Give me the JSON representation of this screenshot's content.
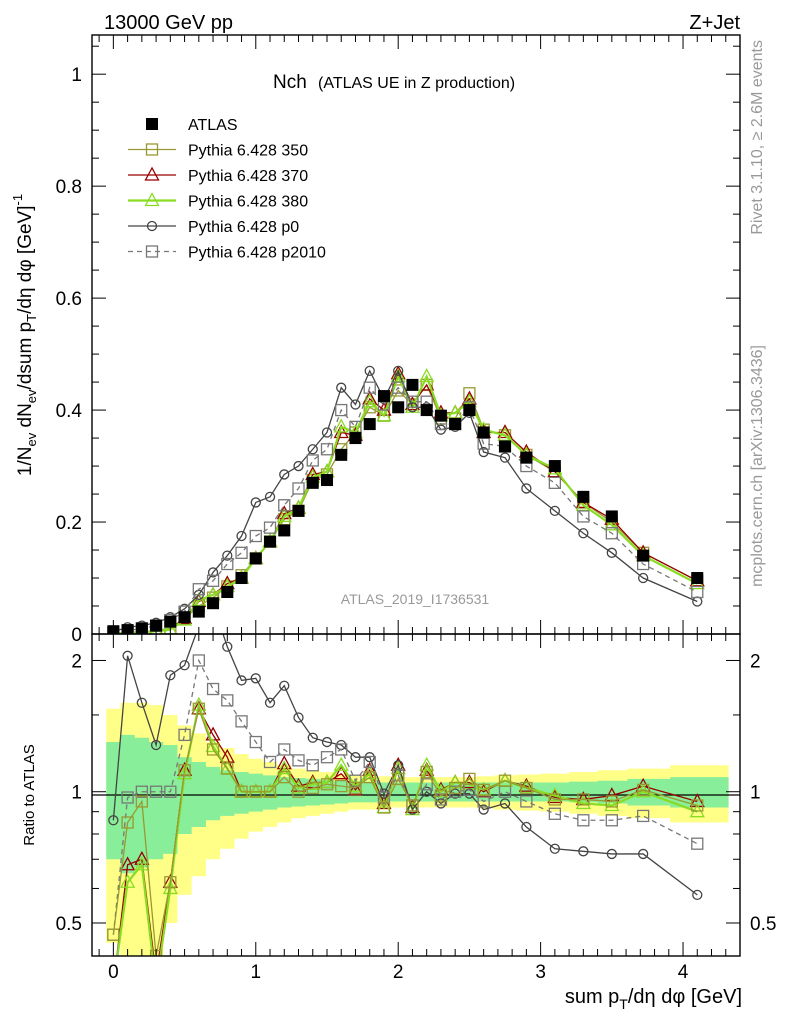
{
  "header": {
    "left": "13000 GeV pp",
    "right": "Z+Jet"
  },
  "plot_title": "Nch",
  "plot_subtitle": "(ATLAS UE in Z production)",
  "analysis_label": "ATLAS_2019_I1736531",
  "side_labels": {
    "rivet": "Rivet 3.1.10, ≥ 2.6M events",
    "mcplots": "mcplots.cern.ch [arXiv:1306.3436]"
  },
  "chart_data": [
    {
      "type": "line",
      "panel": "main",
      "ylabel": "1/N_ev dN_ev/dsum p_T/dη dφ [GeV]^-1",
      "xlim": [
        -0.15,
        4.4
      ],
      "ylim": [
        0,
        1.07
      ],
      "yticks": [
        "0",
        "0.2",
        "0.4",
        "0.6",
        "0.8",
        "1"
      ],
      "legend_position": "top-left",
      "x": [
        0.0,
        0.1,
        0.2,
        0.3,
        0.4,
        0.5,
        0.6,
        0.7,
        0.8,
        0.9,
        1.0,
        1.1,
        1.2,
        1.3,
        1.4,
        1.5,
        1.6,
        1.7,
        1.8,
        1.9,
        2.0,
        2.1,
        2.2,
        2.3,
        2.4,
        2.5,
        2.6,
        2.75,
        2.9,
        3.1,
        3.3,
        3.5,
        3.72,
        4.1
      ],
      "series": [
        {
          "name": "ATLAS",
          "color": "#000000",
          "marker": "filled-square",
          "dash": "none",
          "values": [
            0.005,
            0.007,
            0.01,
            0.015,
            0.022,
            0.03,
            0.04,
            0.055,
            0.075,
            0.1,
            0.135,
            0.165,
            0.185,
            0.22,
            0.27,
            0.275,
            0.32,
            0.35,
            0.375,
            0.425,
            0.405,
            0.445,
            0.4,
            0.39,
            0.375,
            0.4,
            0.36,
            0.335,
            0.315,
            0.3,
            0.245,
            0.21,
            0.14,
            0.1
          ]
        },
        {
          "name": "Pythia 6.428 350",
          "color": "#999933",
          "marker": "open-square",
          "dash": "none",
          "values": [
            0.002,
            0.003,
            0.004,
            0.006,
            0.01,
            0.028,
            0.05,
            0.065,
            0.085,
            0.105,
            0.135,
            0.165,
            0.205,
            0.22,
            0.275,
            0.285,
            0.33,
            0.36,
            0.405,
            0.39,
            0.435,
            0.41,
            0.445,
            0.385,
            0.385,
            0.43,
            0.365,
            0.355,
            0.32,
            0.29,
            0.235,
            0.2,
            0.145,
            0.095
          ]
        },
        {
          "name": "Pythia 6.428 370",
          "color": "#990000",
          "marker": "open-triangle",
          "dash": "none",
          "values": [
            0.001,
            0.002,
            0.003,
            0.005,
            0.008,
            0.028,
            0.058,
            0.07,
            0.09,
            0.1,
            0.135,
            0.165,
            0.215,
            0.225,
            0.285,
            0.29,
            0.36,
            0.355,
            0.42,
            0.4,
            0.465,
            0.41,
            0.445,
            0.395,
            0.395,
            0.42,
            0.36,
            0.36,
            0.325,
            0.29,
            0.235,
            0.205,
            0.145,
            0.095
          ]
        },
        {
          "name": "Pythia 6.428 380",
          "color": "#88dd22",
          "marker": "open-triangle",
          "dash": "none",
          "values": [
            0.001,
            0.002,
            0.003,
            0.005,
            0.008,
            0.025,
            0.06,
            0.07,
            0.085,
            0.1,
            0.135,
            0.165,
            0.21,
            0.225,
            0.28,
            0.29,
            0.37,
            0.36,
            0.415,
            0.39,
            0.46,
            0.405,
            0.46,
            0.39,
            0.395,
            0.415,
            0.365,
            0.355,
            0.32,
            0.295,
            0.23,
            0.195,
            0.14,
            0.09
          ]
        },
        {
          "name": "Pythia 6.428 p0",
          "color": "#444444",
          "marker": "open-circle",
          "dash": "none",
          "values": [
            0.004,
            0.012,
            0.015,
            0.02,
            0.03,
            0.045,
            0.07,
            0.11,
            0.14,
            0.175,
            0.235,
            0.245,
            0.285,
            0.3,
            0.33,
            0.36,
            0.44,
            0.41,
            0.47,
            0.42,
            0.47,
            0.405,
            0.405,
            0.365,
            0.37,
            0.395,
            0.325,
            0.315,
            0.26,
            0.22,
            0.18,
            0.145,
            0.1,
            0.058
          ]
        },
        {
          "name": "Pythia 6.428 p2010",
          "color": "#777777",
          "marker": "open-square",
          "dash": "dashed",
          "values": [
            0.002,
            0.006,
            0.01,
            0.015,
            0.025,
            0.04,
            0.08,
            0.095,
            0.125,
            0.145,
            0.175,
            0.19,
            0.23,
            0.26,
            0.31,
            0.33,
            0.4,
            0.37,
            0.44,
            0.41,
            0.44,
            0.415,
            0.415,
            0.375,
            0.375,
            0.405,
            0.34,
            0.335,
            0.3,
            0.27,
            0.21,
            0.18,
            0.125,
            0.075
          ]
        }
      ]
    },
    {
      "type": "line",
      "panel": "ratio",
      "ylabel": "Ratio to ATLAS",
      "xlabel": "sum p_T/dη dφ [GeV]",
      "xlim": [
        -0.15,
        4.4
      ],
      "ylim": [
        0.42,
        2.3
      ],
      "log_y": true,
      "yticks": [
        "0.5",
        "1",
        "2"
      ],
      "xticks": [
        "0",
        "1",
        "2",
        "3",
        "4"
      ],
      "x": [
        0.0,
        0.1,
        0.2,
        0.3,
        0.4,
        0.5,
        0.6,
        0.7,
        0.8,
        0.9,
        1.0,
        1.1,
        1.2,
        1.3,
        1.4,
        1.5,
        1.6,
        1.7,
        1.8,
        1.9,
        2.0,
        2.1,
        2.2,
        2.3,
        2.4,
        2.5,
        2.6,
        2.75,
        2.9,
        3.1,
        3.3,
        3.5,
        3.72,
        4.1
      ],
      "bands": {
        "inner_color": "#88ee99",
        "outer_color": "#ffff88",
        "inner_halfwidth": [
          0.3,
          0.35,
          0.33,
          0.3,
          0.28,
          0.2,
          0.17,
          0.14,
          0.12,
          0.11,
          0.1,
          0.09,
          0.08,
          0.075,
          0.07,
          0.065,
          0.06,
          0.055,
          0.055,
          0.05,
          0.05,
          0.05,
          0.05,
          0.05,
          0.05,
          0.05,
          0.05,
          0.05,
          0.05,
          0.05,
          0.055,
          0.06,
          0.07,
          0.08
        ],
        "outer_halfwidth": [
          0.55,
          0.6,
          0.6,
          0.58,
          0.5,
          0.42,
          0.36,
          0.3,
          0.26,
          0.22,
          0.19,
          0.17,
          0.15,
          0.13,
          0.12,
          0.11,
          0.1,
          0.09,
          0.09,
          0.085,
          0.08,
          0.08,
          0.08,
          0.08,
          0.08,
          0.08,
          0.085,
          0.09,
          0.095,
          0.1,
          0.11,
          0.12,
          0.13,
          0.15
        ]
      },
      "series": [
        {
          "name": "Pythia 6.428 350",
          "color": "#999933",
          "marker": "open-square",
          "dash": "none",
          "values": [
            0.47,
            0.85,
            0.95,
            0.42,
            0.62,
            1.12,
            1.55,
            1.25,
            1.13,
            1.0,
            1.0,
            1.0,
            1.08,
            1.0,
            1.02,
            1.04,
            1.03,
            1.02,
            1.08,
            0.92,
            1.07,
            0.93,
            1.11,
            0.98,
            1.02,
            1.07,
            1.01,
            1.06,
            1.02,
            0.96,
            0.96,
            0.95,
            1.01,
            0.93
          ]
        },
        {
          "name": "Pythia 6.428 370",
          "color": "#990000",
          "marker": "open-triangle",
          "dash": "none",
          "values": [
            0.3,
            0.68,
            0.7,
            0.38,
            0.62,
            1.12,
            1.55,
            1.35,
            1.2,
            1.0,
            1.0,
            1.0,
            1.16,
            1.03,
            1.05,
            1.05,
            1.1,
            1.01,
            1.12,
            0.94,
            1.15,
            0.92,
            1.12,
            1.01,
            1.05,
            1.05,
            1.0,
            1.06,
            1.03,
            0.97,
            0.96,
            0.98,
            1.03,
            0.95
          ]
        },
        {
          "name": "Pythia 6.428 380",
          "color": "#88dd22",
          "marker": "open-triangle",
          "dash": "none",
          "values": [
            0.28,
            0.62,
            0.68,
            0.35,
            0.6,
            1.1,
            1.58,
            1.27,
            1.13,
            1.0,
            1.0,
            1.0,
            1.13,
            1.02,
            1.04,
            1.05,
            1.15,
            1.03,
            1.1,
            0.92,
            1.13,
            0.91,
            1.15,
            1.0,
            1.05,
            1.04,
            1.01,
            1.06,
            1.02,
            0.98,
            0.94,
            0.93,
            1.0,
            0.9
          ]
        },
        {
          "name": "Pythia 6.428 p0",
          "color": "#444444",
          "marker": "open-circle",
          "dash": "none",
          "values": [
            0.86,
            2.05,
            1.6,
            1.28,
            1.85,
            1.95,
            2.4,
            2.8,
            2.15,
            1.8,
            1.82,
            1.6,
            1.75,
            1.48,
            1.33,
            1.3,
            1.28,
            1.2,
            1.2,
            0.99,
            1.15,
            0.91,
            1.0,
            0.94,
            0.99,
            0.99,
            0.91,
            0.94,
            0.83,
            0.74,
            0.73,
            0.72,
            0.72,
            0.58
          ]
        },
        {
          "name": "Pythia 6.428 p2010",
          "color": "#777777",
          "marker": "open-square",
          "dash": "dashed",
          "values": [
            0.47,
            0.97,
            1.0,
            1.0,
            1.0,
            1.35,
            2.0,
            1.72,
            1.62,
            1.45,
            1.3,
            1.17,
            1.25,
            1.18,
            1.15,
            1.2,
            1.25,
            1.06,
            1.17,
            0.97,
            1.09,
            0.93,
            1.04,
            0.96,
            1.0,
            1.01,
            0.95,
            1.0,
            0.95,
            0.89,
            0.86,
            0.86,
            0.88,
            0.76
          ]
        }
      ]
    }
  ]
}
